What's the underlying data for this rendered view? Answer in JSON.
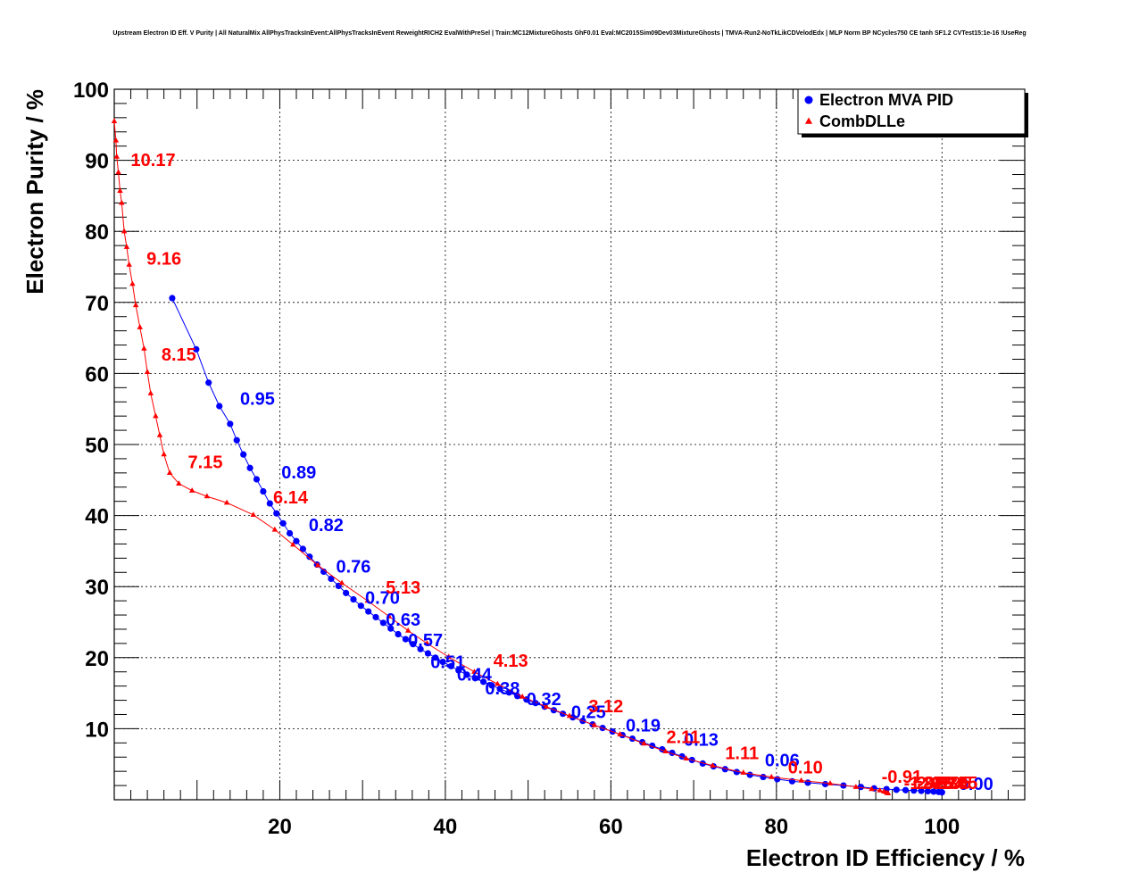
{
  "title": "Upstream Electron ID Eff. V Purity | All NaturalMix AllPhysTracksInEvent:AllPhysTracksInEvent ReweightRICH2 EvalWithPreSel | Train:MC12MixtureGhosts GhF0.01 Eval:MC2015Sim09Dev03MixtureGhosts | TMVA-Run2-NoTkLikCDVelodEdx | MLP Norm BP NCycles750 CE tanh SF1.2 CVTest15:1e-16 !UseReg",
  "colors": {
    "mva": "#0000ff",
    "dll": "#ff0000",
    "axis": "#000000",
    "grid": "#000000"
  },
  "chart_data": {
    "type": "line",
    "title": "Upstream Electron ID Eff. V Purity | All NaturalMix AllPhysTracksInEvent:AllPhysTracksInEvent ReweightRICH2 EvalWithPreSel | Train:MC12MixtureGhosts GhF0.01 Eval:MC2015Sim09Dev03MixtureGhosts | TMVA-Run2-NoTkLikCDVelodEdx | MLP Norm BP NCycles750 CE tanh SF1.2 CVTest15:1e-16 !UseReg",
    "xlabel": "Electron ID Efficiency / %",
    "ylabel": "Electron Purity / %",
    "xlim": [
      0,
      110
    ],
    "ylim": [
      0,
      100
    ],
    "xticks": [
      20,
      40,
      60,
      80,
      100
    ],
    "yticks": [
      10,
      20,
      30,
      40,
      50,
      60,
      70,
      80,
      90,
      100
    ],
    "grid": true,
    "legend_position": "top-right",
    "series": [
      {
        "name": "Electron MVA PID",
        "marker": "circle",
        "points": [
          [
            7.0,
            70.6
          ],
          [
            9.9,
            63.4
          ],
          [
            11.4,
            58.7
          ],
          [
            12.7,
            55.4
          ],
          [
            14.0,
            52.9
          ],
          [
            14.8,
            50.6
          ],
          [
            15.6,
            48.6
          ],
          [
            16.4,
            46.7
          ],
          [
            17.2,
            45.1
          ],
          [
            18.0,
            43.4
          ],
          [
            18.8,
            41.7
          ],
          [
            19.6,
            40.3
          ],
          [
            20.4,
            38.9
          ],
          [
            21.2,
            37.5
          ],
          [
            22.0,
            36.4
          ],
          [
            22.8,
            35.3
          ],
          [
            23.6,
            34.2
          ],
          [
            24.5,
            33.1
          ],
          [
            25.3,
            32.1
          ],
          [
            26.2,
            31.1
          ],
          [
            27.1,
            30.1
          ],
          [
            28.0,
            29.1
          ],
          [
            28.9,
            28.2
          ],
          [
            29.8,
            27.3
          ],
          [
            30.7,
            26.5
          ],
          [
            31.6,
            25.7
          ],
          [
            32.5,
            24.9
          ],
          [
            33.4,
            24.1
          ],
          [
            34.3,
            23.3
          ],
          [
            35.2,
            22.6
          ],
          [
            36.1,
            21.9
          ],
          [
            37.0,
            21.2
          ],
          [
            37.9,
            20.6
          ],
          [
            38.8,
            20.0
          ],
          [
            39.7,
            19.4
          ],
          [
            40.7,
            18.8
          ],
          [
            41.6,
            18.2
          ],
          [
            42.6,
            17.6
          ],
          [
            43.6,
            17.1
          ],
          [
            44.6,
            16.6
          ],
          [
            45.6,
            16.1
          ],
          [
            46.6,
            15.6
          ],
          [
            47.7,
            15.1
          ],
          [
            48.7,
            14.6
          ],
          [
            49.8,
            14.1
          ],
          [
            50.9,
            13.6
          ],
          [
            52.0,
            13.1
          ],
          [
            53.1,
            12.6
          ],
          [
            54.2,
            12.1
          ],
          [
            55.4,
            11.6
          ],
          [
            56.6,
            11.1
          ],
          [
            57.8,
            10.6
          ],
          [
            59.0,
            10.1
          ],
          [
            60.2,
            9.6
          ],
          [
            61.4,
            9.1
          ],
          [
            62.6,
            8.6
          ],
          [
            63.8,
            8.1
          ],
          [
            65.0,
            7.6
          ],
          [
            66.2,
            7.1
          ],
          [
            67.4,
            6.6
          ],
          [
            68.6,
            6.1
          ],
          [
            69.8,
            5.6
          ],
          [
            71.1,
            5.1
          ],
          [
            72.4,
            4.7
          ],
          [
            73.8,
            4.3
          ],
          [
            75.2,
            3.9
          ],
          [
            76.8,
            3.5
          ],
          [
            78.4,
            3.2
          ],
          [
            80.1,
            2.9
          ],
          [
            81.9,
            2.6
          ],
          [
            83.8,
            2.4
          ],
          [
            85.9,
            2.2
          ],
          [
            88.1,
            2.0
          ],
          [
            90.2,
            1.8
          ],
          [
            91.8,
            1.6
          ],
          [
            93.3,
            1.5
          ],
          [
            94.5,
            1.4
          ],
          [
            95.6,
            1.35
          ],
          [
            96.6,
            1.3
          ],
          [
            97.5,
            1.25
          ],
          [
            98.3,
            1.2
          ],
          [
            99.0,
            1.15
          ],
          [
            99.6,
            1.1
          ],
          [
            100.0,
            1.05
          ]
        ],
        "cut_labels": [
          {
            "text": "0.95",
            "x": 15.2,
            "y": 55.6
          },
          {
            "text": "0.89",
            "x": 20.2,
            "y": 45.2
          },
          {
            "text": "0.82",
            "x": 23.5,
            "y": 37.8
          },
          {
            "text": "0.76",
            "x": 26.8,
            "y": 32.0
          },
          {
            "text": "0.70",
            "x": 30.3,
            "y": 27.6
          },
          {
            "text": "0.63",
            "x": 32.8,
            "y": 24.5
          },
          {
            "text": "0.57",
            "x": 35.5,
            "y": 21.6
          },
          {
            "text": "0.51",
            "x": 38.2,
            "y": 18.5
          },
          {
            "text": "0.44",
            "x": 41.4,
            "y": 16.8
          },
          {
            "text": "0.38",
            "x": 44.8,
            "y": 14.8
          },
          {
            "text": "0.32",
            "x": 49.8,
            "y": 13.3
          },
          {
            "text": "0.25",
            "x": 55.2,
            "y": 11.5
          },
          {
            "text": "0.19",
            "x": 61.8,
            "y": 9.6
          },
          {
            "text": "0.13",
            "x": 68.8,
            "y": 7.6
          },
          {
            "text": "0.06",
            "x": 78.6,
            "y": 4.7
          },
          {
            "text": "0.00",
            "x": 102.0,
            "y": 1.4
          }
        ]
      },
      {
        "name": "CombDLLe",
        "marker": "triangle",
        "points": [
          [
            0.0,
            95.5
          ],
          [
            0.2,
            92.8
          ],
          [
            0.3,
            90.5
          ],
          [
            0.5,
            88.3
          ],
          [
            0.7,
            85.7
          ],
          [
            0.9,
            84.0
          ],
          [
            1.2,
            80.0
          ],
          [
            1.5,
            77.8
          ],
          [
            1.8,
            75.3
          ],
          [
            2.2,
            72.6
          ],
          [
            2.6,
            69.6
          ],
          [
            3.1,
            66.5
          ],
          [
            3.6,
            63.5
          ],
          [
            4.0,
            60.2
          ],
          [
            4.4,
            57.2
          ],
          [
            5.0,
            54.0
          ],
          [
            5.5,
            51.3
          ],
          [
            6.0,
            48.6
          ],
          [
            6.7,
            46.0
          ],
          [
            7.8,
            44.5
          ],
          [
            9.4,
            43.5
          ],
          [
            11.2,
            42.7
          ],
          [
            13.6,
            41.8
          ],
          [
            16.8,
            40.1
          ],
          [
            19.4,
            38.0
          ],
          [
            21.6,
            35.9
          ],
          [
            24.6,
            33.0
          ],
          [
            27.5,
            30.5
          ],
          [
            30.6,
            28.0
          ],
          [
            33.2,
            25.8
          ],
          [
            35.5,
            23.8
          ],
          [
            37.8,
            22.0
          ],
          [
            40.4,
            20.1
          ],
          [
            43.5,
            18.0
          ],
          [
            46.3,
            16.3
          ],
          [
            49.3,
            14.5
          ],
          [
            52.2,
            13.1
          ],
          [
            55.0,
            11.8
          ],
          [
            58.0,
            10.5
          ],
          [
            61.1,
            9.2
          ],
          [
            64.0,
            7.9
          ],
          [
            66.6,
            6.8
          ],
          [
            69.1,
            5.8
          ],
          [
            72.3,
            4.8
          ],
          [
            76.0,
            3.8
          ],
          [
            79.4,
            3.2
          ],
          [
            83.0,
            2.7
          ],
          [
            86.5,
            2.3
          ],
          [
            89.6,
            1.8
          ],
          [
            91.5,
            1.5
          ],
          [
            92.5,
            1.3
          ],
          [
            93.0,
            1.15
          ],
          [
            93.3,
            1.0
          ],
          [
            93.5,
            0.9
          ]
        ],
        "cut_labels": [
          {
            "text": "10.17",
            "x": 2.0,
            "y": 89.2
          },
          {
            "text": "9.16",
            "x": 3.9,
            "y": 75.3
          },
          {
            "text": "8.15",
            "x": 5.7,
            "y": 61.8
          },
          {
            "text": "7.15",
            "x": 8.9,
            "y": 46.7
          },
          {
            "text": "6.14",
            "x": 19.2,
            "y": 41.7
          },
          {
            "text": "5.13",
            "x": 32.8,
            "y": 29.0
          },
          {
            "text": "4.13",
            "x": 45.8,
            "y": 18.7
          },
          {
            "text": "3.12",
            "x": 57.3,
            "y": 12.3
          },
          {
            "text": "2.11",
            "x": 66.7,
            "y": 8.0
          },
          {
            "text": "1.11",
            "x": 73.8,
            "y": 5.7
          },
          {
            "text": "0.10",
            "x": 81.4,
            "y": 3.7
          },
          {
            "text": "-0.91",
            "x": 92.7,
            "y": 2.4
          },
          {
            "text": "-1.92",
            "x": 95.4,
            "y": 1.5
          },
          {
            "text": "-2.92",
            "x": 96.2,
            "y": 1.5
          },
          {
            "text": "-3.93",
            "x": 97.0,
            "y": 1.5
          },
          {
            "text": "-4.94",
            "x": 97.8,
            "y": 1.5
          },
          {
            "text": "-5.95",
            "x": 98.6,
            "y": 1.5
          },
          {
            "text": "-6.95",
            "x": 99.4,
            "y": 1.5
          }
        ]
      }
    ]
  }
}
